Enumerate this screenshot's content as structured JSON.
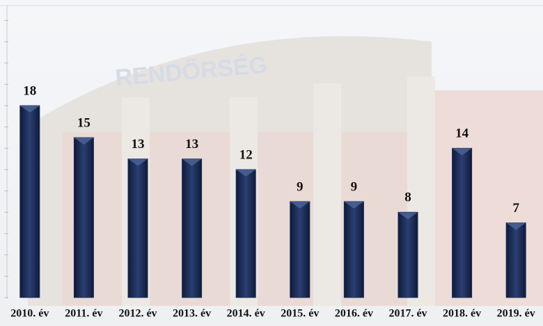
{
  "chart_data": {
    "type": "bar",
    "categories": [
      "2010. év",
      "2011. év",
      "2012. év",
      "2013. év",
      "2014. év",
      "2015. év",
      "2016. év",
      "2017. év",
      "2018. év",
      "2019. év"
    ],
    "values": [
      18,
      15,
      13,
      13,
      12,
      9,
      9,
      8,
      14,
      7
    ],
    "color": "#1b2c57",
    "ylim": [
      0,
      27
    ],
    "yticks": [
      0,
      2,
      4,
      6,
      8,
      10,
      12,
      14,
      16,
      18,
      20,
      22,
      24,
      26
    ],
    "grid": false
  },
  "background": {
    "sign": "RENDŐRSÉG"
  }
}
